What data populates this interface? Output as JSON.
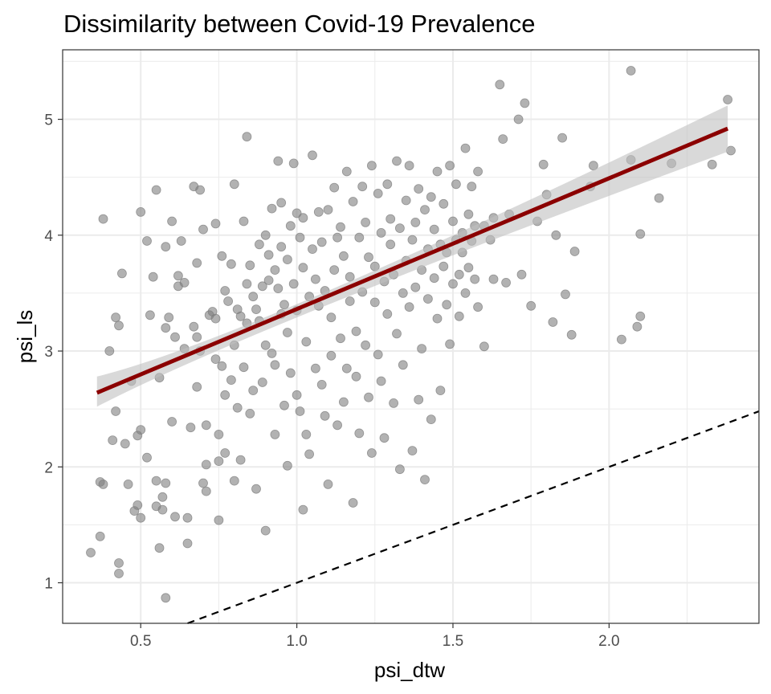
{
  "chart_data": {
    "type": "scatter",
    "title": "Dissimilarity between Covid-19 Prevalence",
    "xlabel": "psi_dtw",
    "ylabel": "psi_ls",
    "xlim": [
      0.25,
      2.48
    ],
    "ylim": [
      0.65,
      5.6
    ],
    "x_ticks": [
      0.5,
      1.0,
      1.5,
      2.0
    ],
    "x_tick_labels": [
      "0.5",
      "1.0",
      "1.5",
      "2.0"
    ],
    "y_ticks": [
      1,
      2,
      3,
      4,
      5
    ],
    "y_tick_labels": [
      "1",
      "2",
      "3",
      "4",
      "5"
    ],
    "grid": true,
    "legend": "none",
    "colors": {
      "points": "#7f7f7f",
      "fit_line": "#8b0000",
      "confidence_band": "#bfbfbf",
      "reference_line": "#000000",
      "grid": "#ebebeb",
      "panel_border": "#333333"
    },
    "fit_line": {
      "from": [
        0.36,
        2.64
      ],
      "to": [
        2.38,
        4.92
      ]
    },
    "confidence_band": {
      "x": [
        0.36,
        1.1,
        2.38
      ],
      "lower": [
        2.52,
        3.4,
        4.72
      ],
      "upper": [
        2.78,
        3.52,
        5.12
      ]
    },
    "reference_line": {
      "slope": 1,
      "intercept": 0,
      "style": "dashed"
    },
    "points": [
      [
        0.34,
        1.26
      ],
      [
        0.37,
        1.87
      ],
      [
        0.37,
        1.4
      ],
      [
        0.38,
        1.85
      ],
      [
        0.38,
        4.14
      ],
      [
        0.4,
        3.0
      ],
      [
        0.41,
        2.23
      ],
      [
        0.42,
        3.29
      ],
      [
        0.42,
        2.48
      ],
      [
        0.43,
        3.22
      ],
      [
        0.43,
        1.17
      ],
      [
        0.43,
        1.08
      ],
      [
        0.44,
        3.67
      ],
      [
        0.45,
        2.2
      ],
      [
        0.46,
        1.85
      ],
      [
        0.47,
        2.74
      ],
      [
        0.48,
        1.62
      ],
      [
        0.49,
        2.27
      ],
      [
        0.49,
        1.67
      ],
      [
        0.5,
        2.32
      ],
      [
        0.5,
        1.56
      ],
      [
        0.5,
        4.2
      ],
      [
        0.52,
        3.95
      ],
      [
        0.52,
        2.08
      ],
      [
        0.53,
        3.31
      ],
      [
        0.54,
        3.64
      ],
      [
        0.55,
        4.39
      ],
      [
        0.55,
        1.88
      ],
      [
        0.55,
        1.66
      ],
      [
        0.56,
        2.77
      ],
      [
        0.56,
        1.3
      ],
      [
        0.57,
        1.74
      ],
      [
        0.57,
        1.63
      ],
      [
        0.58,
        0.87
      ],
      [
        0.58,
        1.86
      ],
      [
        0.58,
        3.2
      ],
      [
        0.58,
        3.9
      ],
      [
        0.59,
        3.29
      ],
      [
        0.6,
        4.12
      ],
      [
        0.6,
        2.39
      ],
      [
        0.61,
        3.12
      ],
      [
        0.61,
        1.57
      ],
      [
        0.62,
        3.65
      ],
      [
        0.62,
        3.56
      ],
      [
        0.63,
        3.95
      ],
      [
        0.64,
        3.02
      ],
      [
        0.64,
        3.59
      ],
      [
        0.65,
        1.56
      ],
      [
        0.65,
        1.34
      ],
      [
        0.66,
        2.34
      ],
      [
        0.67,
        3.21
      ],
      [
        0.67,
        4.42
      ],
      [
        0.68,
        2.69
      ],
      [
        0.68,
        3.12
      ],
      [
        0.68,
        3.76
      ],
      [
        0.69,
        4.39
      ],
      [
        0.69,
        3.0
      ],
      [
        0.7,
        4.05
      ],
      [
        0.7,
        1.86
      ],
      [
        0.71,
        2.36
      ],
      [
        0.71,
        2.02
      ],
      [
        0.71,
        1.79
      ],
      [
        0.72,
        3.31
      ],
      [
        0.73,
        3.34
      ],
      [
        0.74,
        3.28
      ],
      [
        0.74,
        2.93
      ],
      [
        0.74,
        4.1
      ],
      [
        0.75,
        2.28
      ],
      [
        0.75,
        2.05
      ],
      [
        0.75,
        1.54
      ],
      [
        0.76,
        2.87
      ],
      [
        0.76,
        3.82
      ],
      [
        0.77,
        2.62
      ],
      [
        0.77,
        2.12
      ],
      [
        0.77,
        3.52
      ],
      [
        0.78,
        3.43
      ],
      [
        0.79,
        2.75
      ],
      [
        0.79,
        3.75
      ],
      [
        0.8,
        4.44
      ],
      [
        0.8,
        3.05
      ],
      [
        0.8,
        1.88
      ],
      [
        0.81,
        3.36
      ],
      [
        0.81,
        2.51
      ],
      [
        0.82,
        2.06
      ],
      [
        0.82,
        3.3
      ],
      [
        0.83,
        2.86
      ],
      [
        0.83,
        4.12
      ],
      [
        0.84,
        4.85
      ],
      [
        0.84,
        3.58
      ],
      [
        0.84,
        3.24
      ],
      [
        0.85,
        2.46
      ],
      [
        0.85,
        3.74
      ],
      [
        0.86,
        3.47
      ],
      [
        0.86,
        2.66
      ],
      [
        0.87,
        1.81
      ],
      [
        0.87,
        3.36
      ],
      [
        0.88,
        3.92
      ],
      [
        0.88,
        3.26
      ],
      [
        0.89,
        2.73
      ],
      [
        0.89,
        3.56
      ],
      [
        0.9,
        4.0
      ],
      [
        0.9,
        3.05
      ],
      [
        0.9,
        1.45
      ],
      [
        0.91,
        3.61
      ],
      [
        0.91,
        3.83
      ],
      [
        0.92,
        2.98
      ],
      [
        0.92,
        4.23
      ],
      [
        0.93,
        3.7
      ],
      [
        0.93,
        2.28
      ],
      [
        0.93,
        2.88
      ],
      [
        0.94,
        4.64
      ],
      [
        0.94,
        3.54
      ],
      [
        0.95,
        3.32
      ],
      [
        0.95,
        4.28
      ],
      [
        0.95,
        3.9
      ],
      [
        0.96,
        3.4
      ],
      [
        0.96,
        2.53
      ],
      [
        0.97,
        3.16
      ],
      [
        0.97,
        2.01
      ],
      [
        0.97,
        3.79
      ],
      [
        0.98,
        4.08
      ],
      [
        0.98,
        2.81
      ],
      [
        0.99,
        3.58
      ],
      [
        0.99,
        4.62
      ],
      [
        1.0,
        4.19
      ],
      [
        1.0,
        3.35
      ],
      [
        1.0,
        2.62
      ],
      [
        1.01,
        3.98
      ],
      [
        1.01,
        2.48
      ],
      [
        1.02,
        3.72
      ],
      [
        1.02,
        1.63
      ],
      [
        1.02,
        4.15
      ],
      [
        1.03,
        3.08
      ],
      [
        1.03,
        2.28
      ],
      [
        1.04,
        3.47
      ],
      [
        1.04,
        2.11
      ],
      [
        1.05,
        4.69
      ],
      [
        1.05,
        3.88
      ],
      [
        1.06,
        3.62
      ],
      [
        1.06,
        2.85
      ],
      [
        1.07,
        3.39
      ],
      [
        1.07,
        4.2
      ],
      [
        1.08,
        2.71
      ],
      [
        1.08,
        3.94
      ],
      [
        1.09,
        2.44
      ],
      [
        1.09,
        3.52
      ],
      [
        1.1,
        4.22
      ],
      [
        1.1,
        1.85
      ],
      [
        1.11,
        3.29
      ],
      [
        1.11,
        2.96
      ],
      [
        1.12,
        3.7
      ],
      [
        1.12,
        4.41
      ],
      [
        1.13,
        2.36
      ],
      [
        1.13,
        3.98
      ],
      [
        1.14,
        4.07
      ],
      [
        1.14,
        3.11
      ],
      [
        1.15,
        2.56
      ],
      [
        1.15,
        3.82
      ],
      [
        1.16,
        4.55
      ],
      [
        1.16,
        2.85
      ],
      [
        1.17,
        3.43
      ],
      [
        1.17,
        3.64
      ],
      [
        1.18,
        1.69
      ],
      [
        1.18,
        4.29
      ],
      [
        1.19,
        2.78
      ],
      [
        1.19,
        3.17
      ],
      [
        1.2,
        2.29
      ],
      [
        1.2,
        3.98
      ],
      [
        1.21,
        4.42
      ],
      [
        1.21,
        3.51
      ],
      [
        1.22,
        3.05
      ],
      [
        1.22,
        4.11
      ],
      [
        1.23,
        2.6
      ],
      [
        1.23,
        3.81
      ],
      [
        1.24,
        2.12
      ],
      [
        1.24,
        4.6
      ],
      [
        1.25,
        3.42
      ],
      [
        1.25,
        3.73
      ],
      [
        1.26,
        4.36
      ],
      [
        1.26,
        2.97
      ],
      [
        1.27,
        2.74
      ],
      [
        1.27,
        4.02
      ],
      [
        1.28,
        3.6
      ],
      [
        1.28,
        2.25
      ],
      [
        1.29,
        4.44
      ],
      [
        1.29,
        3.32
      ],
      [
        1.3,
        3.92
      ],
      [
        1.3,
        4.14
      ],
      [
        1.31,
        2.55
      ],
      [
        1.31,
        3.66
      ],
      [
        1.32,
        4.64
      ],
      [
        1.32,
        3.15
      ],
      [
        1.33,
        1.98
      ],
      [
        1.33,
        4.06
      ],
      [
        1.34,
        3.5
      ],
      [
        1.34,
        2.88
      ],
      [
        1.35,
        4.3
      ],
      [
        1.35,
        3.78
      ],
      [
        1.36,
        3.38
      ],
      [
        1.36,
        4.6
      ],
      [
        1.37,
        2.14
      ],
      [
        1.37,
        3.96
      ],
      [
        1.38,
        4.11
      ],
      [
        1.38,
        3.55
      ],
      [
        1.39,
        2.58
      ],
      [
        1.39,
        4.4
      ],
      [
        1.4,
        3.7
      ],
      [
        1.4,
        3.02
      ],
      [
        1.41,
        4.22
      ],
      [
        1.41,
        1.89
      ],
      [
        1.42,
        3.88
      ],
      [
        1.42,
        3.45
      ],
      [
        1.43,
        4.33
      ],
      [
        1.43,
        2.41
      ],
      [
        1.44,
        3.63
      ],
      [
        1.44,
        4.05
      ],
      [
        1.45,
        3.28
      ],
      [
        1.45,
        4.55
      ],
      [
        1.46,
        3.92
      ],
      [
        1.46,
        2.66
      ],
      [
        1.47,
        3.73
      ],
      [
        1.47,
        4.27
      ],
      [
        1.48,
        3.4
      ],
      [
        1.48,
        3.85
      ],
      [
        1.49,
        4.6
      ],
      [
        1.49,
        3.06
      ],
      [
        1.5,
        4.12
      ],
      [
        1.5,
        3.58
      ],
      [
        1.51,
        3.96
      ],
      [
        1.51,
        4.44
      ],
      [
        1.52,
        3.66
      ],
      [
        1.52,
        3.3
      ],
      [
        1.53,
        4.02
      ],
      [
        1.53,
        3.85
      ],
      [
        1.54,
        4.75
      ],
      [
        1.54,
        3.5
      ],
      [
        1.55,
        4.18
      ],
      [
        1.55,
        3.72
      ],
      [
        1.56,
        3.95
      ],
      [
        1.56,
        4.42
      ],
      [
        1.57,
        3.62
      ],
      [
        1.57,
        4.08
      ],
      [
        1.58,
        4.55
      ],
      [
        1.58,
        3.38
      ],
      [
        1.6,
        3.04
      ],
      [
        1.6,
        4.08
      ],
      [
        1.62,
        3.96
      ],
      [
        1.63,
        4.15
      ],
      [
        1.63,
        3.62
      ],
      [
        1.65,
        5.3
      ],
      [
        1.66,
        4.83
      ],
      [
        1.67,
        3.59
      ],
      [
        1.68,
        4.18
      ],
      [
        1.71,
        5.0
      ],
      [
        1.72,
        3.66
      ],
      [
        1.73,
        5.14
      ],
      [
        1.75,
        3.39
      ],
      [
        1.77,
        4.12
      ],
      [
        1.79,
        4.61
      ],
      [
        1.8,
        4.35
      ],
      [
        1.82,
        3.25
      ],
      [
        1.83,
        4.0
      ],
      [
        1.85,
        4.84
      ],
      [
        1.86,
        3.49
      ],
      [
        1.88,
        3.14
      ],
      [
        1.89,
        3.86
      ],
      [
        1.94,
        4.42
      ],
      [
        1.95,
        4.6
      ],
      [
        2.04,
        3.1
      ],
      [
        2.07,
        5.42
      ],
      [
        2.07,
        4.65
      ],
      [
        2.09,
        3.21
      ],
      [
        2.1,
        3.3
      ],
      [
        2.1,
        4.01
      ],
      [
        2.16,
        4.32
      ],
      [
        2.2,
        4.62
      ],
      [
        2.33,
        4.61
      ],
      [
        2.38,
        5.17
      ],
      [
        2.39,
        4.73
      ]
    ]
  }
}
